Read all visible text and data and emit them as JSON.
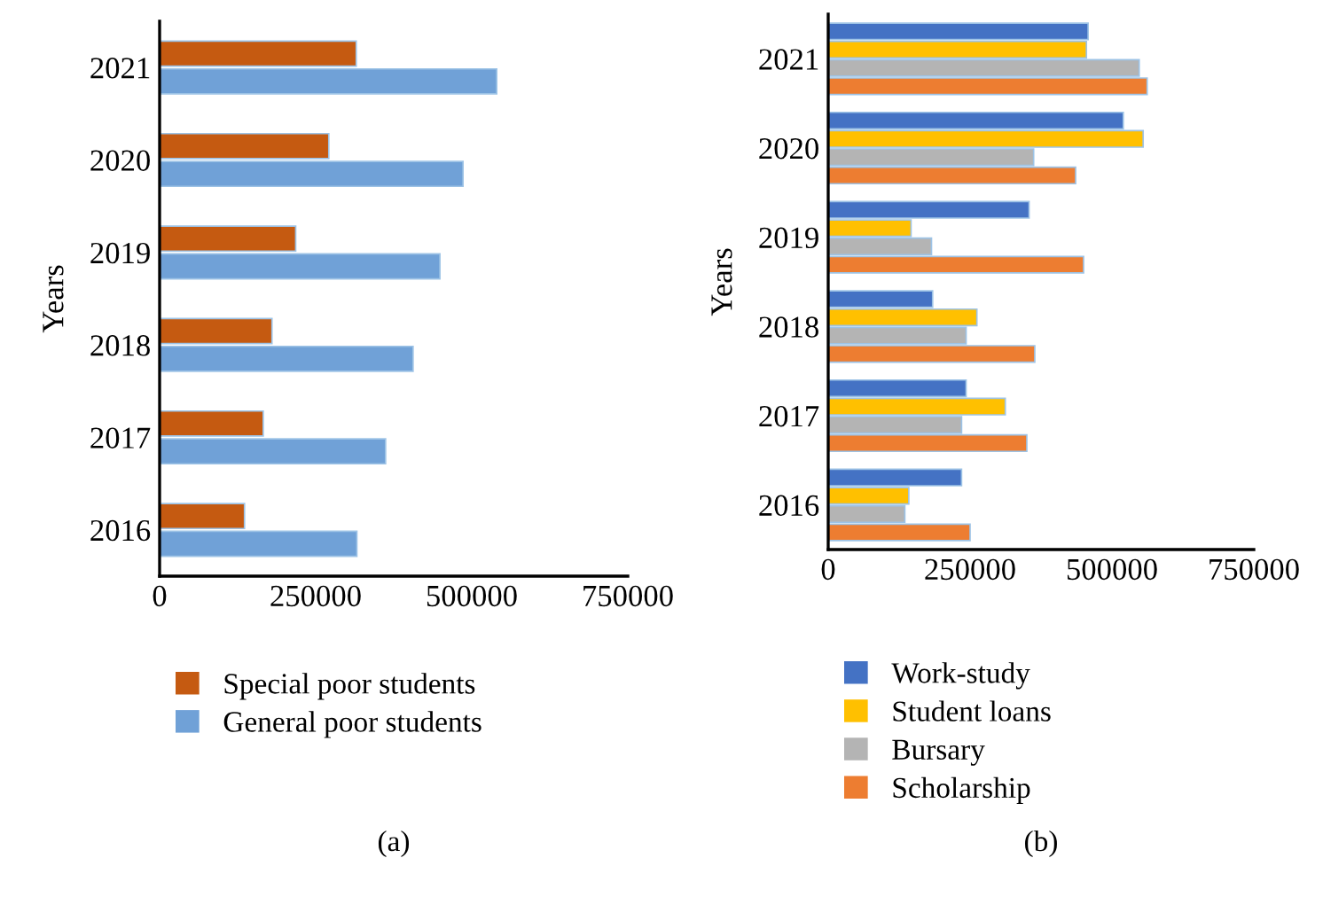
{
  "chart_data": [
    {
      "type": "bar",
      "orientation": "horizontal",
      "ylabel": "Years",
      "categories": [
        "2021",
        "2020",
        "2019",
        "2018",
        "2017",
        "2016"
      ],
      "series": [
        {
          "name": "Special poor students",
          "color": "#c55a11",
          "values": [
            315000,
            271000,
            218000,
            180000,
            166000,
            136000
          ]
        },
        {
          "name": "General poor students",
          "color": "#70a1d7",
          "values": [
            540000,
            486000,
            449000,
            406000,
            362000,
            316000
          ]
        }
      ],
      "xlim": [
        0,
        750000
      ],
      "xticks": [
        0,
        250000,
        500000,
        750000
      ],
      "grid": false,
      "legend": "bottom",
      "annotations": [
        "(a)"
      ]
    },
    {
      "type": "bar",
      "orientation": "horizontal",
      "ylabel": "Years",
      "categories": [
        "2021",
        "2020",
        "2019",
        "2018",
        "2017",
        "2016"
      ],
      "series": [
        {
          "name": "Work-study",
          "color": "#4472c4",
          "values": [
            458000,
            520000,
            354000,
            184000,
            243000,
            235000
          ]
        },
        {
          "name": "Student loans",
          "color": "#ffc000",
          "values": [
            455000,
            555000,
            146000,
            262000,
            312000,
            142000
          ]
        },
        {
          "name": "Bursary",
          "color": "#b4b4b4",
          "values": [
            548000,
            362000,
            182000,
            243000,
            235000,
            135000
          ]
        },
        {
          "name": "Scholarship",
          "color": "#ed7d31",
          "values": [
            562000,
            436000,
            450000,
            364000,
            350000,
            250000
          ]
        }
      ],
      "xlim": [
        0,
        750000
      ],
      "xticks": [
        0,
        250000,
        500000,
        750000
      ],
      "grid": false,
      "legend": "bottom",
      "annotations": [
        "(b)"
      ]
    }
  ]
}
